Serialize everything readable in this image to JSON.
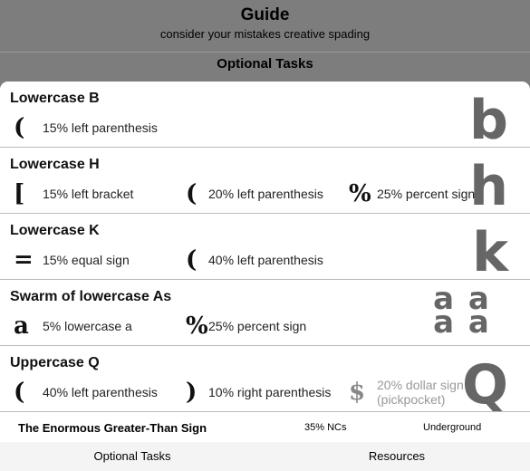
{
  "header": {
    "title": "Guide",
    "subtitle": "consider your mistakes creative spading"
  },
  "section_title": "Optional Tasks",
  "monsters": [
    {
      "name": "Lowercase B",
      "art": "b",
      "drops": [
        {
          "icon": "(",
          "text": "15% left parenthesis"
        }
      ]
    },
    {
      "name": "Lowercase H",
      "art": "h",
      "drops": [
        {
          "icon": "[",
          "text": "15% left bracket"
        },
        {
          "icon": "(",
          "text": "20% left parenthesis"
        },
        {
          "icon": "%",
          "text": "25% percent sign"
        }
      ]
    },
    {
      "name": "Lowercase K",
      "art": "k",
      "drops": [
        {
          "icon": "=",
          "text": "15% equal sign"
        },
        {
          "icon": "(",
          "text": "40% left parenthesis"
        }
      ]
    },
    {
      "name": "Swarm of lowercase As",
      "art": "a a a a",
      "drops": [
        {
          "icon": "a",
          "text": "5% lowercase a"
        },
        {
          "icon": "%",
          "text": "25% percent sign"
        }
      ]
    },
    {
      "name": "Uppercase Q",
      "art": "Q",
      "drops": [
        {
          "icon": "(",
          "text": "40% left parenthesis"
        },
        {
          "icon": ")",
          "text": "10% right parenthesis"
        },
        {
          "icon": "$",
          "text": "20% dollar sign",
          "note": "(pickpocket)",
          "dim": true
        }
      ]
    }
  ],
  "footer_row": {
    "name": "The Enormous Greater-Than Sign",
    "rate": "35% NCs",
    "zone": "Underground"
  },
  "tabs": [
    "Optional Tasks",
    "Resources"
  ]
}
